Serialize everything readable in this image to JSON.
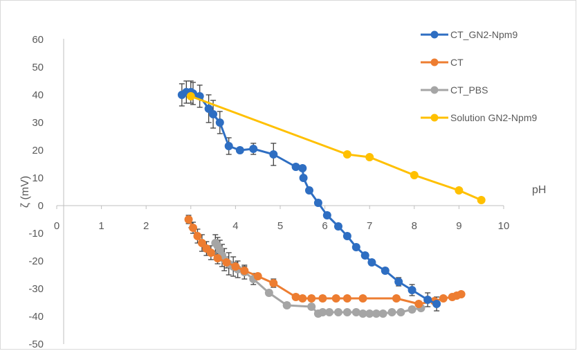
{
  "chart_data": {
    "type": "scatter",
    "xlabel": "pH",
    "ylabel": "ζ (mV)",
    "xlim": [
      0,
      10
    ],
    "ylim": [
      -50,
      60
    ],
    "x_ticks": [
      0,
      1,
      2,
      3,
      4,
      5,
      6,
      7,
      8,
      9,
      10
    ],
    "y_ticks": [
      60,
      50,
      40,
      30,
      20,
      10,
      0,
      -10,
      -20,
      -30,
      -40,
      -50
    ],
    "grid": false,
    "legend_position": "top-right",
    "series": [
      {
        "name": "CT_GN2-Npm9",
        "color": "#2e6ec2",
        "x": [
          2.8,
          2.9,
          3.0,
          3.05,
          3.2,
          3.4,
          3.5,
          3.65,
          3.85,
          4.1,
          4.4,
          4.85,
          5.35,
          5.5,
          5.52,
          5.65,
          5.85,
          6.05,
          6.3,
          6.5,
          6.7,
          6.9,
          7.05,
          7.35,
          7.65,
          7.95,
          8.3,
          8.5
        ],
        "y": [
          40,
          41,
          41,
          40.5,
          39.5,
          35,
          33,
          30,
          21.5,
          20,
          20.5,
          18.5,
          14,
          13.5,
          10,
          5.5,
          1,
          -3.5,
          -7.5,
          -11,
          -15,
          -18,
          -20.5,
          -23.5,
          -27.5,
          -30.5,
          -34,
          -35.5
        ],
        "error": [
          4,
          4,
          4,
          4,
          4,
          5,
          5,
          4,
          3,
          1,
          2,
          4,
          1,
          1,
          1,
          1,
          1,
          1,
          1,
          1,
          1,
          1,
          1,
          1,
          1.5,
          2,
          2.5,
          2.5
        ]
      },
      {
        "name": "CT",
        "color": "#ed7d31",
        "x": [
          2.95,
          3.05,
          3.15,
          3.25,
          3.35,
          3.45,
          3.6,
          3.8,
          4.0,
          4.2,
          4.5,
          4.85,
          5.35,
          5.5,
          5.7,
          5.95,
          6.25,
          6.5,
          6.85,
          7.6,
          8.1,
          8.45,
          8.65,
          8.85,
          8.95,
          9.05
        ],
        "y": [
          -5,
          -8,
          -11,
          -13.5,
          -15.5,
          -17,
          -19,
          -20.5,
          -22,
          -23.5,
          -25.5,
          -28,
          -33,
          -33.5,
          -33.5,
          -33.5,
          -33.5,
          -33.5,
          -33.5,
          -33.5,
          -35.5,
          -34.5,
          -33.5,
          -33,
          -32.5,
          -32
        ],
        "error": [
          1.5,
          2,
          2.5,
          3,
          2.5,
          2.5,
          2,
          2,
          1.5,
          1.5,
          1,
          1.5,
          1,
          1,
          1,
          1,
          0.5,
          0.5,
          0.5,
          0.5,
          1,
          0.5,
          0.5,
          0.5,
          0.5,
          0.5
        ]
      },
      {
        "name": "CT_PBS",
        "color": "#a5a5a5",
        "x": [
          3.55,
          3.6,
          3.65,
          3.7,
          3.75,
          3.85,
          3.95,
          4.05,
          4.2,
          4.4,
          4.75,
          5.15,
          5.7,
          5.85,
          5.95,
          6.1,
          6.3,
          6.5,
          6.7,
          6.85,
          7.0,
          7.15,
          7.3,
          7.5,
          7.7,
          7.95,
          8.15
        ],
        "y": [
          -13.5,
          -14.5,
          -16,
          -18,
          -19.5,
          -21,
          -22,
          -23,
          -24,
          -26.5,
          -31.5,
          -36,
          -36.5,
          -39,
          -38.5,
          -38.5,
          -38.5,
          -38.5,
          -38.5,
          -39,
          -39,
          -39,
          -39,
          -38.5,
          -38.5,
          -37.5,
          -37
        ],
        "error": [
          3,
          3,
          3.5,
          4,
          4,
          4,
          3.5,
          3,
          2.5,
          2,
          1,
          1,
          1,
          1,
          0.5,
          0.5,
          0.5,
          0.5,
          0.5,
          0.5,
          0.5,
          0.5,
          0.5,
          0.5,
          0.5,
          1,
          1
        ]
      },
      {
        "name": "Solution GN2-Npm9",
        "color": "#ffc000",
        "x": [
          3.0,
          6.5,
          7.0,
          8.0,
          9.0,
          9.5
        ],
        "y": [
          39.5,
          18.5,
          17.5,
          11,
          5.5,
          2
        ],
        "error": []
      }
    ]
  }
}
